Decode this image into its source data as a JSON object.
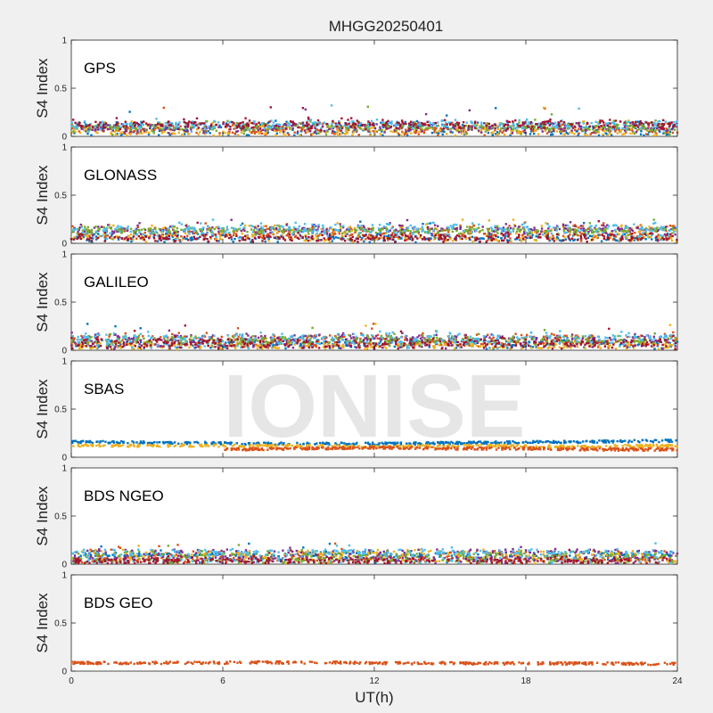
{
  "figure": {
    "title": "MHGG20250401",
    "watermark": "IONISE",
    "xlabel": "UT(h)",
    "background": "#f0f0f0",
    "axes_background": "#ffffff"
  },
  "chart_data": [
    {
      "type": "scatter",
      "panel_label": "GPS",
      "ylabel": "S4 Index",
      "ylim": [
        0,
        1
      ],
      "yticks": [
        "0",
        "0.5",
        "1"
      ],
      "xlim": [
        0,
        24
      ],
      "xticks": [
        "0",
        "6",
        "12",
        "18",
        "24"
      ],
      "grid": false,
      "typical_range": [
        0.02,
        0.18
      ],
      "max_value": 0.34,
      "series_colors": [
        "#0072bd",
        "#d95319",
        "#edb120",
        "#7e2f8e",
        "#77ac30",
        "#4dbeee",
        "#a2142f"
      ]
    },
    {
      "type": "scatter",
      "panel_label": "GLONASS",
      "ylabel": "S4 Index",
      "ylim": [
        0,
        1
      ],
      "yticks": [
        "0",
        "0.5",
        "1"
      ],
      "xlim": [
        0,
        24
      ],
      "xticks": [
        "0",
        "6",
        "12",
        "18",
        "24"
      ],
      "grid": false,
      "typical_range": [
        0.03,
        0.2
      ],
      "max_value": 0.25,
      "series_colors": [
        "#0072bd",
        "#d95319",
        "#edb120",
        "#7e2f8e",
        "#77ac30",
        "#4dbeee",
        "#a2142f"
      ]
    },
    {
      "type": "scatter",
      "panel_label": "GALILEO",
      "ylabel": "S4 Index",
      "ylim": [
        0,
        1
      ],
      "yticks": [
        "0",
        "0.5",
        "1"
      ],
      "xlim": [
        0,
        24
      ],
      "xticks": [
        "0",
        "6",
        "12",
        "18",
        "24"
      ],
      "grid": false,
      "typical_range": [
        0.03,
        0.18
      ],
      "max_value": 0.28,
      "series_colors": [
        "#0072bd",
        "#d95319",
        "#edb120",
        "#7e2f8e",
        "#77ac30",
        "#4dbeee",
        "#a2142f"
      ]
    },
    {
      "type": "scatter",
      "panel_label": "SBAS",
      "ylabel": "S4 Index",
      "ylim": [
        0,
        1
      ],
      "yticks": [
        "0",
        "0.5",
        "1"
      ],
      "xlim": [
        0,
        24
      ],
      "xticks": [
        "0",
        "6",
        "12",
        "18",
        "24"
      ],
      "grid": false,
      "series": [
        {
          "color": "#0072bd",
          "x": [
            0,
            4,
            8,
            12,
            16,
            20,
            24
          ],
          "values": [
            0.16,
            0.15,
            0.14,
            0.14,
            0.15,
            0.16,
            0.17
          ]
        },
        {
          "color": "#edb120",
          "x": [
            0,
            4,
            8,
            12,
            16,
            20,
            24
          ],
          "values": [
            0.12,
            0.12,
            0.12,
            0.11,
            0.12,
            0.11,
            0.12
          ]
        },
        {
          "color": "#d95319",
          "x": [
            6,
            9,
            12,
            15,
            18,
            21,
            24
          ],
          "values": [
            0.08,
            0.09,
            0.1,
            0.09,
            0.09,
            0.08,
            0.08
          ]
        }
      ]
    },
    {
      "type": "scatter",
      "panel_label": "BDS NGEO",
      "ylabel": "S4 Index",
      "ylim": [
        0,
        1
      ],
      "yticks": [
        "0",
        "0.5",
        "1"
      ],
      "xlim": [
        0,
        24
      ],
      "xticks": [
        "0",
        "6",
        "12",
        "18",
        "24"
      ],
      "grid": false,
      "typical_range": [
        0.02,
        0.14
      ],
      "max_value": 0.22,
      "series_colors": [
        "#0072bd",
        "#d95319",
        "#edb120",
        "#7e2f8e",
        "#77ac30",
        "#4dbeee",
        "#a2142f"
      ]
    },
    {
      "type": "scatter",
      "panel_label": "BDS GEO",
      "ylabel": "S4 Index",
      "ylim": [
        0,
        1
      ],
      "yticks": [
        "0",
        "0.5",
        "1"
      ],
      "xlim": [
        0,
        24
      ],
      "xticks": [
        "0",
        "6",
        "12",
        "18",
        "24"
      ],
      "grid": false,
      "series": [
        {
          "color": "#d95319",
          "x": [
            0,
            4,
            8,
            12,
            16,
            20,
            24
          ],
          "values": [
            0.085,
            0.085,
            0.09,
            0.085,
            0.08,
            0.08,
            0.075
          ]
        }
      ]
    }
  ]
}
